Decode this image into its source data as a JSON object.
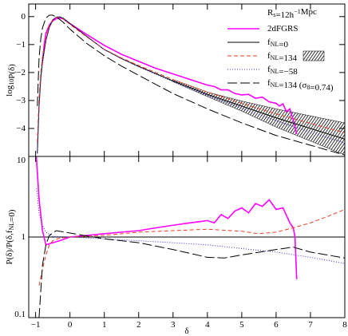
{
  "chart_data": [
    {
      "type": "line",
      "annotation": "Rs=12h−1Mpc",
      "y_label": "log10P(δ)",
      "xlim": [
        -1.2,
        8
      ],
      "ylim": [
        -5,
        0.45
      ],
      "yticks": [
        0,
        {
          "value": -1,
          "label": "−1"
        },
        {
          "value": -2,
          "label": "−2"
        },
        {
          "value": -3,
          "label": "−3"
        },
        {
          "value": -4,
          "label": "−4"
        }
      ],
      "legend": "upper right",
      "band": {
        "x": [
          3,
          4,
          5,
          6,
          7,
          8
        ],
        "upper": [
          -2.25,
          -2.7,
          -3.02,
          -3.3,
          -3.55,
          -3.8
        ],
        "lower": [
          -2.33,
          -2.86,
          -3.38,
          -3.95,
          -4.45,
          -4.95
        ]
      },
      "series": [
        {
          "name": "2dFGRS",
          "color": "#ff00ff",
          "dash": "solid",
          "x": [
            -0.8,
            -0.75,
            -0.7,
            -0.6,
            -0.5,
            -0.4,
            -0.3,
            -0.2,
            0,
            0.5,
            1,
            1.5,
            2,
            2.5,
            3,
            3.5,
            4,
            4.2,
            4.4,
            4.6,
            4.8,
            5,
            5.2,
            5.4,
            5.6,
            5.8,
            6,
            6.1,
            6.2,
            6.3,
            6.4,
            6.5,
            6.6
          ],
          "values": [
            -1.6,
            -1.0,
            -0.6,
            -0.3,
            -0.15,
            -0.08,
            -0.05,
            -0.08,
            -0.25,
            -0.65,
            -1.03,
            -1.35,
            -1.6,
            -1.85,
            -2.05,
            -2.25,
            -2.45,
            -2.5,
            -2.62,
            -2.62,
            -2.75,
            -2.8,
            -2.78,
            -2.92,
            -2.88,
            -3.05,
            -3.1,
            -3.2,
            -3.12,
            -3.4,
            -3.3,
            -3.7,
            -4.2
          ]
        },
        {
          "name": "fNL=0",
          "color": "#000000",
          "dash": "solid",
          "x": [
            -0.95,
            -0.9,
            -0.85,
            -0.8,
            -0.7,
            -0.6,
            -0.5,
            -0.4,
            -0.3,
            -0.2,
            0,
            0.5,
            1,
            1.5,
            2,
            3,
            4,
            5,
            6,
            7,
            8
          ],
          "values": [
            -4.9,
            -3.2,
            -2.2,
            -1.6,
            -0.85,
            -0.38,
            -0.12,
            -0.02,
            -0.01,
            -0.06,
            -0.25,
            -0.72,
            -1.18,
            -1.5,
            -1.78,
            -2.3,
            -2.78,
            -3.2,
            -3.62,
            -4.0,
            -4.38
          ]
        },
        {
          "name": "fNL=134",
          "color": "#e8402a",
          "dash": "dashed",
          "x": [
            -0.95,
            -0.9,
            -0.85,
            -0.8,
            -0.7,
            -0.6,
            -0.5,
            -0.4,
            -0.3,
            -0.2,
            0,
            0.5,
            1,
            1.5,
            2,
            3,
            4,
            5,
            6,
            7,
            8
          ],
          "values": [
            -4.5,
            -2.9,
            -2.0,
            -1.45,
            -0.78,
            -0.33,
            -0.1,
            -0.03,
            -0.03,
            -0.08,
            -0.28,
            -0.74,
            -1.17,
            -1.48,
            -1.75,
            -2.25,
            -2.7,
            -3.1,
            -3.48,
            -3.82,
            -4.15
          ]
        },
        {
          "name": "fNL=−58",
          "color": "#3333cc",
          "dash": "dotted",
          "x": [
            -0.95,
            -0.9,
            -0.85,
            -0.8,
            -0.7,
            -0.6,
            -0.5,
            -0.4,
            -0.3,
            -0.2,
            0,
            0.5,
            1,
            1.5,
            2,
            3,
            4,
            5,
            6,
            7,
            8
          ],
          "values": [
            -4.9,
            -3.3,
            -2.3,
            -1.7,
            -0.88,
            -0.4,
            -0.13,
            -0.02,
            -0.01,
            -0.05,
            -0.24,
            -0.71,
            -1.18,
            -1.51,
            -1.8,
            -2.33,
            -2.82,
            -3.27,
            -3.72,
            -4.13,
            -4.52
          ]
        },
        {
          "name": "fNL=134 (σ8=0.74)",
          "color": "#000000",
          "dash": "longdash",
          "x": [
            -0.95,
            -0.9,
            -0.85,
            -0.8,
            -0.7,
            -0.6,
            -0.5,
            -0.4,
            -0.3,
            -0.2,
            0,
            0.5,
            1,
            1.5,
            2,
            3,
            4,
            5,
            6,
            7,
            8
          ],
          "values": [
            -3.2,
            -1.5,
            -0.8,
            -0.4,
            -0.05,
            0.05,
            0.05,
            -0.02,
            -0.1,
            -0.2,
            -0.45,
            -0.97,
            -1.4,
            -1.77,
            -2.1,
            -2.75,
            -3.3,
            -3.8,
            -4.25,
            -4.6,
            -4.95
          ]
        }
      ]
    },
    {
      "type": "line",
      "y_label": "P(δ)/P(δ,fNL=0)",
      "x_label": "δ",
      "xlim": [
        -1.2,
        8
      ],
      "ylim": [
        0.1,
        10
      ],
      "yscale": "log",
      "yticks": [
        0.1,
        1,
        10
      ],
      "xticks": [
        {
          "value": -1,
          "label": "−1"
        },
        0,
        1,
        2,
        3,
        4,
        5,
        6,
        7,
        8
      ],
      "series": [
        {
          "color": "#000000",
          "dash": "solid",
          "x": [
            -1.2,
            8
          ],
          "values": [
            1,
            1
          ]
        },
        {
          "color": "#ff00ff",
          "dash": "solid",
          "x": [
            -0.98,
            -0.9,
            -0.8,
            -0.7,
            -0.5,
            -0.3,
            0,
            0.5,
            1,
            1.5,
            2,
            2.5,
            3,
            3.5,
            4,
            4.2,
            4.4,
            4.6,
            4.8,
            5,
            5.2,
            5.4,
            5.6,
            5.8,
            6,
            6.2,
            6.4,
            6.5,
            6.55,
            6.6
          ],
          "values": [
            10,
            3,
            1.2,
            0.8,
            0.85,
            0.9,
            1.0,
            1.05,
            1.1,
            1.15,
            1.2,
            1.3,
            1.4,
            1.5,
            1.6,
            1.5,
            1.9,
            1.7,
            2.1,
            2.3,
            2.0,
            2.6,
            2.4,
            2.9,
            2.2,
            2.3,
            1.5,
            1.3,
            1.0,
            0.3
          ]
        },
        {
          "color": "#e8402a",
          "dash": "dashed",
          "x": [
            -0.9,
            -0.8,
            -0.7,
            -0.6,
            -0.5,
            -0.3,
            0,
            1,
            2,
            3,
            4,
            5,
            5.5,
            6,
            6.5,
            7,
            7.5,
            8
          ],
          "values": [
            0.25,
            0.4,
            0.6,
            0.8,
            0.9,
            0.97,
            1.0,
            1.05,
            1.15,
            1.2,
            1.25,
            1.18,
            1.1,
            1.15,
            1.3,
            1.5,
            1.8,
            2.2
          ]
        },
        {
          "color": "#3333cc",
          "dash": "dotted",
          "x": [
            -0.97,
            -0.9,
            -0.8,
            -0.7,
            -0.5,
            0,
            1,
            2,
            3,
            4,
            5,
            6,
            7,
            8
          ],
          "values": [
            4,
            2,
            1.4,
            1.15,
            1.02,
            1.0,
            0.95,
            0.9,
            0.85,
            0.8,
            0.72,
            0.65,
            0.56,
            0.47
          ]
        },
        {
          "color": "#000000",
          "dash": "longdash",
          "x": [
            -0.9,
            -0.8,
            -0.7,
            -0.6,
            -0.4,
            0,
            1,
            2,
            3,
            4,
            4.5,
            5,
            6,
            6.5,
            7,
            8
          ],
          "values": [
            0.1,
            0.45,
            0.8,
            1.05,
            1.2,
            1.12,
            0.95,
            0.85,
            0.7,
            0.56,
            0.55,
            0.6,
            0.7,
            0.75,
            0.65,
            0.55
          ]
        }
      ]
    }
  ]
}
